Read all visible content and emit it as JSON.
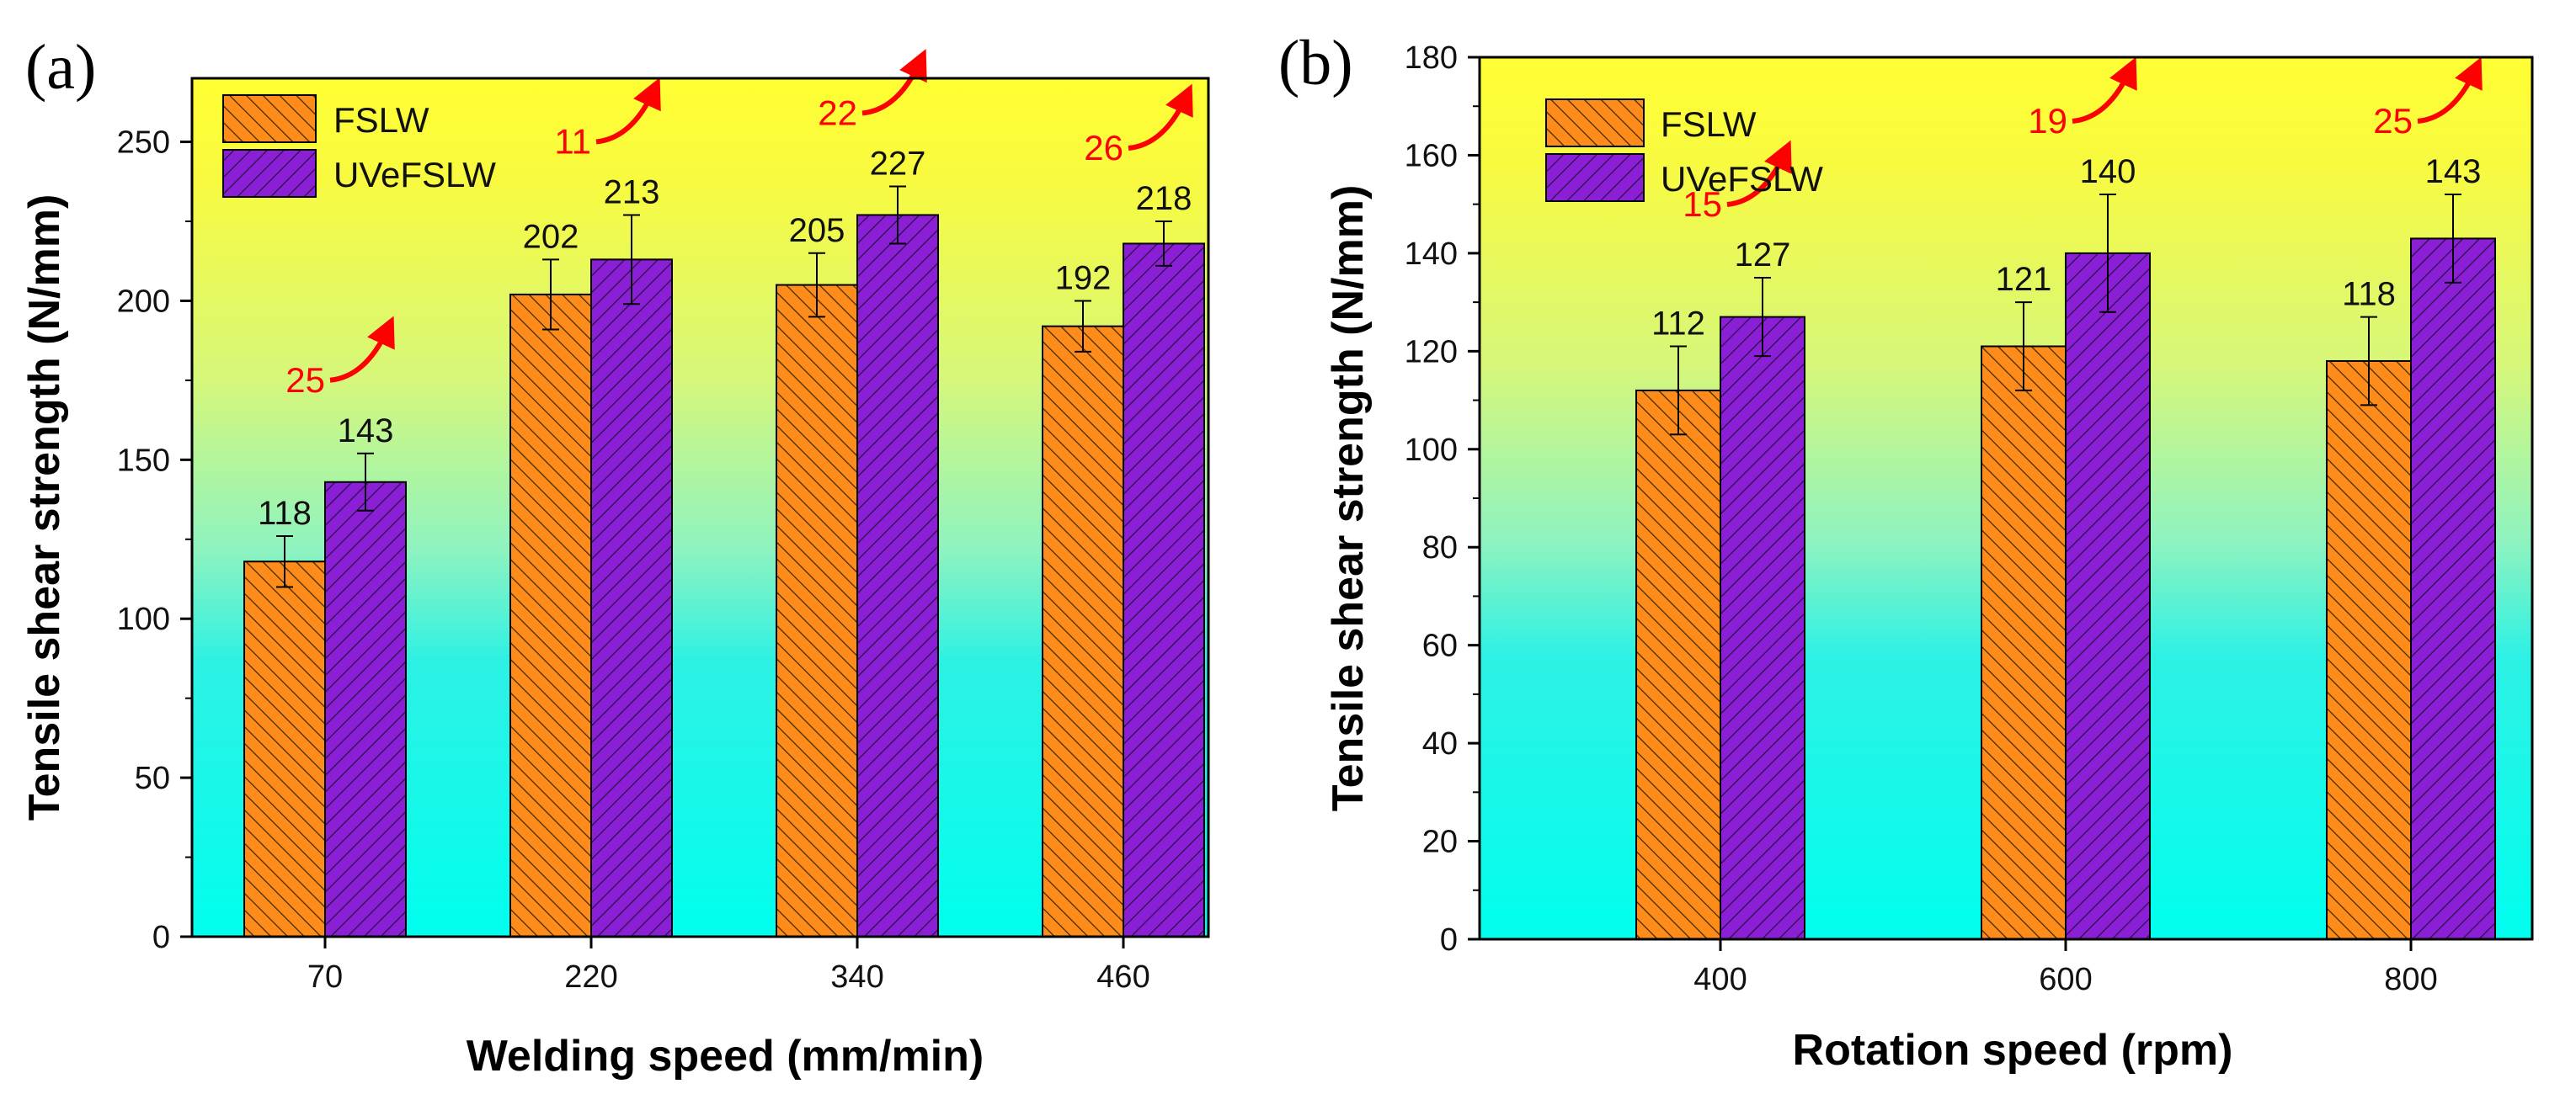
{
  "chart_data": [
    {
      "type": "bar",
      "panel_label": "(a)",
      "xlabel": "Welding speed (mm/min)",
      "ylabel": "Tensile shear strength (N/mm)",
      "categories": [
        "70",
        "220",
        "340",
        "460"
      ],
      "ylim": [
        0,
        270
      ],
      "yticks": [
        0,
        50,
        100,
        150,
        200,
        250
      ],
      "series": [
        {
          "name": "FSLW",
          "values": [
            118,
            202,
            205,
            192
          ],
          "errors": [
            8,
            11,
            10,
            8
          ],
          "labels": [
            "118",
            "202",
            "205",
            "192"
          ]
        },
        {
          "name": "UVeFSLW",
          "values": [
            143,
            213,
            227,
            218
          ],
          "errors": [
            9,
            14,
            9,
            7
          ],
          "labels": [
            "143",
            "213",
            "227",
            "218"
          ]
        }
      ],
      "increase_labels": [
        "25",
        "11",
        "22",
        "26"
      ],
      "legend": "top-left",
      "background": "vertical gradient cyan to yellow"
    },
    {
      "type": "bar",
      "panel_label": "(b)",
      "xlabel": "Rotation speed (rpm)",
      "ylabel": "Tensile shear strength (N/mm)",
      "categories": [
        "400",
        "600",
        "800"
      ],
      "ylim": [
        0,
        180
      ],
      "yticks": [
        0,
        20,
        40,
        60,
        80,
        100,
        120,
        140,
        160,
        180
      ],
      "series": [
        {
          "name": "FSLW",
          "values": [
            112,
            121,
            118
          ],
          "errors": [
            9,
            9,
            9
          ],
          "labels": [
            "112",
            "121",
            "118"
          ]
        },
        {
          "name": "UVeFSLW",
          "values": [
            127,
            140,
            143
          ],
          "errors": [
            8,
            12,
            9
          ],
          "labels": [
            "127",
            "140",
            "143"
          ]
        }
      ],
      "increase_labels": [
        "15",
        "19",
        "25"
      ],
      "legend": "top-left",
      "background": "vertical gradient cyan to yellow"
    }
  ],
  "colors": {
    "fslw_fill": "#ff8c1a",
    "uvefslw_fill": "#8a1fd6",
    "hatch": "#3a2a00",
    "increase": "#ff0000",
    "bg_top": "#ffff33",
    "bg_bottom": "#00ffee"
  }
}
